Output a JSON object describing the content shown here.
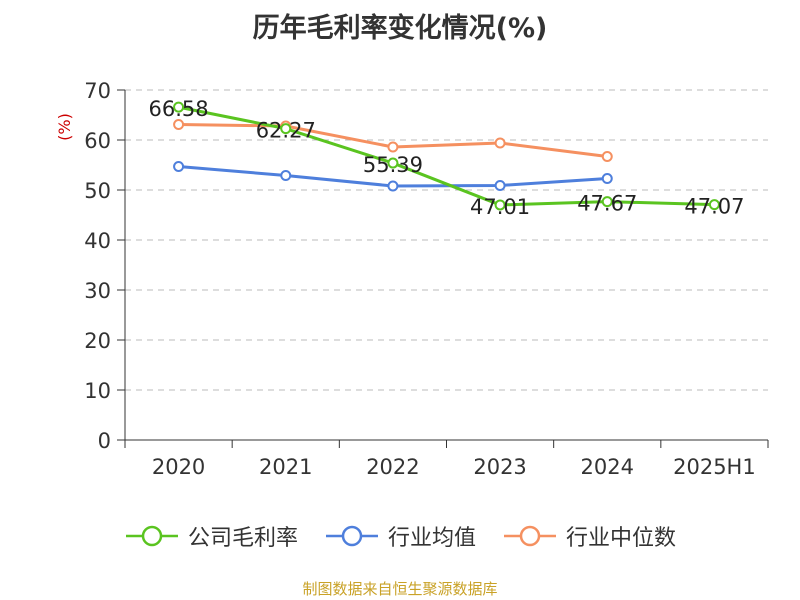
{
  "chart_data": {
    "type": "line",
    "title": "历年毛利率变化情况(%)",
    "ylabel": "(%)",
    "xlabel": "",
    "categories": [
      "2020",
      "2021",
      "2022",
      "2023",
      "2024",
      "2025H1"
    ],
    "ylim": [
      0,
      70
    ],
    "yticks": [
      0,
      10,
      20,
      30,
      40,
      50,
      60,
      70
    ],
    "grid": true,
    "legend_position": "bottom",
    "series": [
      {
        "name": "公司毛利率",
        "color": "#5ac420",
        "values": [
          66.58,
          62.27,
          55.39,
          47.01,
          47.67,
          47.07
        ],
        "labels": [
          "66.58",
          "62.27",
          "55.39",
          "47.01",
          "47.67",
          "47.07"
        ]
      },
      {
        "name": "行业均值",
        "color": "#4e7fdc",
        "values": [
          54.7,
          52.9,
          50.8,
          50.9,
          52.3,
          null
        ]
      },
      {
        "name": "行业中位数",
        "color": "#f59060",
        "values": [
          63.1,
          62.8,
          58.6,
          59.4,
          56.7,
          null
        ]
      }
    ]
  },
  "source": "制图数据来自恒生聚源数据库"
}
